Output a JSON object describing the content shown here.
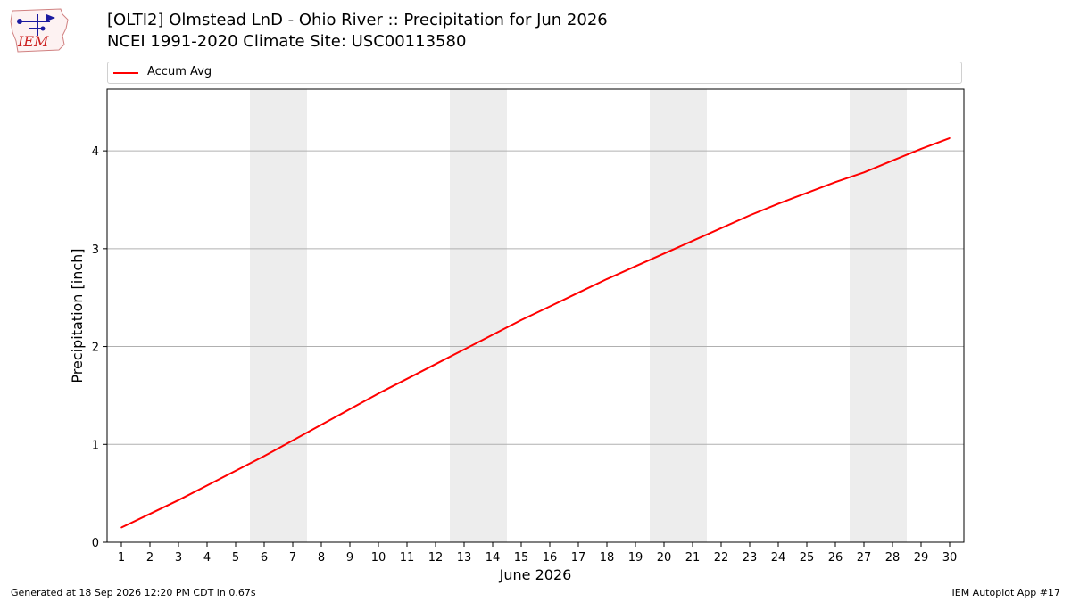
{
  "header": {
    "title_line1": "[OLTI2] Olmstead LnD - Ohio River :: Precipitation for Jun 2026",
    "title_line2": "NCEI 1991-2020 Climate Site: USC00113580"
  },
  "logo": {
    "text": "IEM"
  },
  "footer": {
    "generated": "Generated at 18 Sep 2026 12:20 PM CDT in 0.67s",
    "app": "IEM Autoplot App #17"
  },
  "colors": {
    "line": "#ff0000",
    "weekend_band": "#ededed",
    "grid": "#b0b0b0"
  },
  "chart_data": {
    "type": "line",
    "xlabel": "June 2026",
    "ylabel": "Precipitation [inch]",
    "x": [
      1,
      2,
      3,
      4,
      5,
      6,
      7,
      8,
      9,
      10,
      11,
      12,
      13,
      14,
      15,
      16,
      17,
      18,
      19,
      20,
      21,
      22,
      23,
      24,
      25,
      26,
      27,
      28,
      29,
      30
    ],
    "xlim": [
      0.5,
      30.5
    ],
    "ylim": [
      0,
      4.63
    ],
    "yticks": [
      0,
      1,
      2,
      3,
      4
    ],
    "grid": "horizontal",
    "legend_position": "top",
    "shaded_days": [
      [
        6,
        7
      ],
      [
        13,
        14
      ],
      [
        20,
        21
      ],
      [
        27,
        28
      ]
    ],
    "series": [
      {
        "name": "Accum Avg",
        "color": "#ff0000",
        "values": [
          0.15,
          0.29,
          0.43,
          0.58,
          0.73,
          0.88,
          1.04,
          1.2,
          1.36,
          1.52,
          1.67,
          1.82,
          1.97,
          2.12,
          2.27,
          2.41,
          2.55,
          2.69,
          2.82,
          2.95,
          3.08,
          3.21,
          3.34,
          3.46,
          3.57,
          3.68,
          3.78,
          3.9,
          4.02,
          4.13
        ]
      }
    ]
  }
}
